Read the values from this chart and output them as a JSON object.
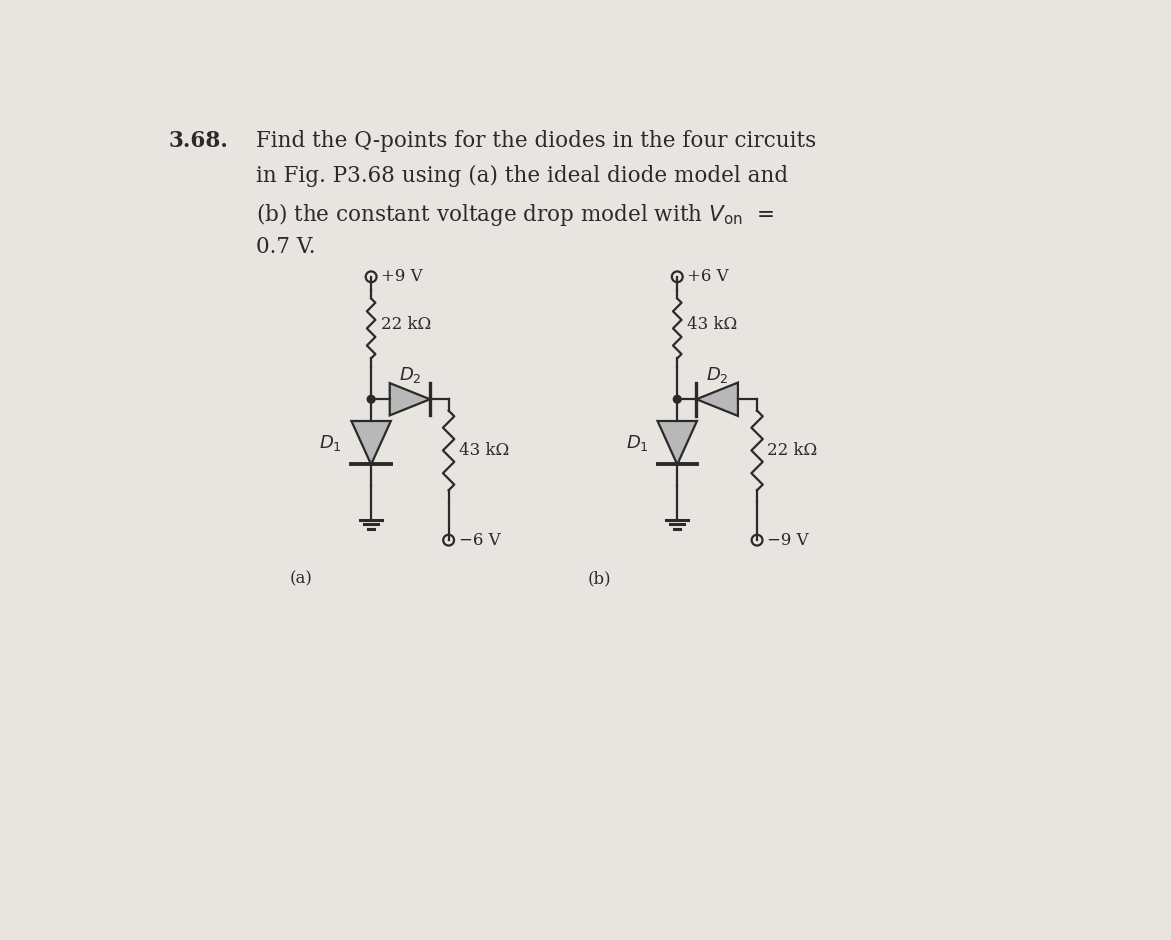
{
  "bg_color": "#e8e5e0",
  "line_color": "#2a2a2a",
  "fill_color": "#b8b8b8",
  "text_color": "#1a1a1a",
  "figsize": [
    11.71,
    9.4
  ],
  "dpi": 100,
  "circuit_a": {
    "label": "(a)",
    "vplus": "+9 V",
    "vminus": "−6 V",
    "R1_label": "22 kΩ",
    "R2_label": "43 kΩ",
    "D1_label": "D",
    "D2_label": "D",
    "D2_forward": true
  },
  "circuit_b": {
    "label": "(b)",
    "vplus": "+6 V",
    "vminus": "−9 V",
    "R1_label": "43 kΩ",
    "R2_label": "22 kΩ",
    "D1_label": "D",
    "D2_label": "D",
    "D2_forward": false
  }
}
